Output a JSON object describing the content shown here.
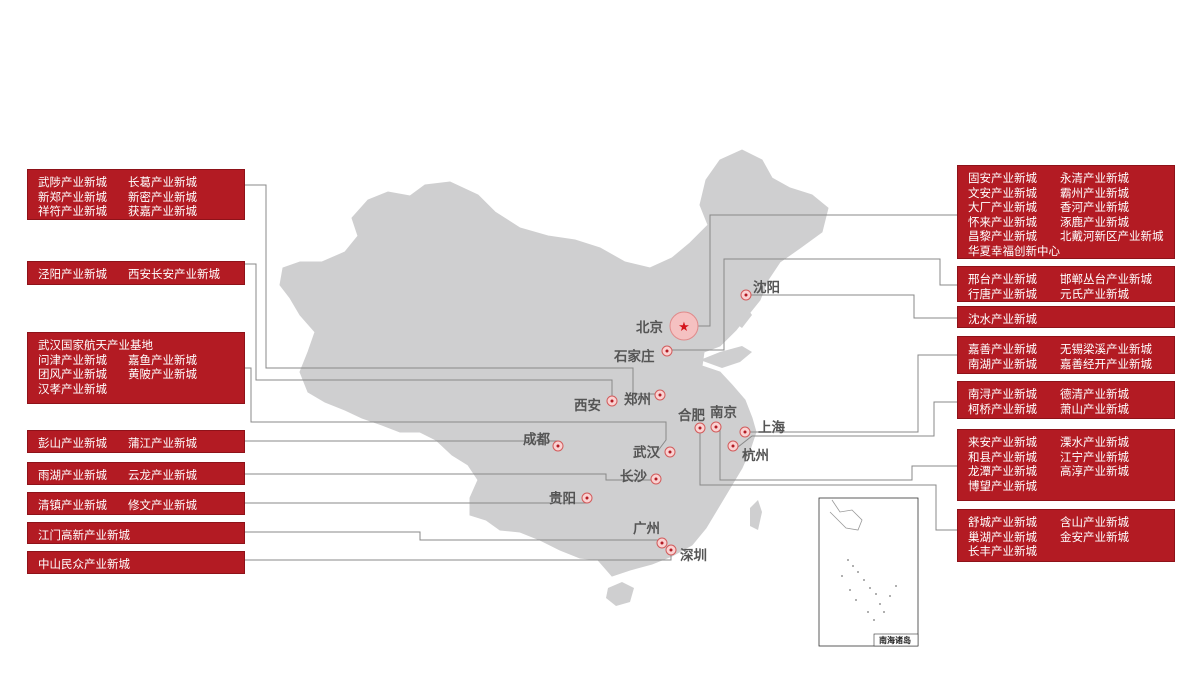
{
  "map": {
    "inset_label": "南海诸岛"
  },
  "cities": {
    "beijing": "北京",
    "shijiazhuang": "石家庄",
    "shenyang": "沈阳",
    "xian": "西安",
    "zhengzhou": "郑州",
    "hefei": "合肥",
    "nanjing": "南京",
    "shanghai": "上海",
    "hangzhou": "杭州",
    "chengdu": "成都",
    "wuhan": "武汉",
    "changsha": "长沙",
    "guiyang": "贵阳",
    "guangzhou": "广州",
    "shenzhen": "深圳"
  },
  "left_boxes": [
    {
      "rows": [
        [
          "武陟产业新城",
          "长葛产业新城"
        ],
        [
          "新郑产业新城",
          "新密产业新城"
        ],
        [
          "祥符产业新城",
          "获嘉产业新城"
        ]
      ]
    },
    {
      "rows": [
        [
          "泾阳产业新城",
          "西安长安产业新城"
        ]
      ]
    },
    {
      "rows": [
        [
          "武汉国家航天产业基地"
        ],
        [
          "问津产业新城",
          "嘉鱼产业新城"
        ],
        [
          "团风产业新城",
          "黄陂产业新城"
        ],
        [
          "汉孝产业新城"
        ]
      ]
    },
    {
      "rows": [
        [
          "彭山产业新城",
          "蒲江产业新城"
        ]
      ]
    },
    {
      "rows": [
        [
          "雨湖产业新城",
          "云龙产业新城"
        ]
      ]
    },
    {
      "rows": [
        [
          "清镇产业新城",
          "修文产业新城"
        ]
      ]
    },
    {
      "rows": [
        [
          "江门高新产业新城"
        ]
      ]
    },
    {
      "rows": [
        [
          "中山民众产业新城"
        ]
      ]
    }
  ],
  "right_boxes": [
    {
      "rows": [
        [
          "固安产业新城",
          "永清产业新城"
        ],
        [
          "文安产业新城",
          "霸州产业新城"
        ],
        [
          "大厂产业新城",
          "香河产业新城"
        ],
        [
          "怀来产业新城",
          "涿鹿产业新城"
        ],
        [
          "昌黎产业新城",
          "北戴河新区产业新城"
        ],
        [
          "华夏幸福创新中心"
        ]
      ]
    },
    {
      "rows": [
        [
          "邢台产业新城",
          "邯郸丛台产业新城"
        ],
        [
          "行唐产业新城",
          "元氏产业新城"
        ]
      ]
    },
    {
      "rows": [
        [
          "沈水产业新城"
        ]
      ]
    },
    {
      "rows": [
        [
          "嘉善产业新城",
          "无锡梁溪产业新城"
        ],
        [
          "南湖产业新城",
          "嘉善经开产业新城"
        ]
      ]
    },
    {
      "rows": [
        [
          "南浔产业新城",
          "德清产业新城"
        ],
        [
          "柯桥产业新城",
          "萧山产业新城"
        ]
      ]
    },
    {
      "rows": [
        [
          "来安产业新城",
          "溧水产业新城"
        ],
        [
          "和县产业新城",
          "江宁产业新城"
        ],
        [
          "龙潭产业新城",
          "高淳产业新城"
        ],
        [
          "博望产业新城"
        ]
      ]
    },
    {
      "rows": [
        [
          "舒城产业新城",
          "含山产业新城"
        ],
        [
          "巢湖产业新城",
          "金安产业新城"
        ],
        [
          "长丰产业新城"
        ]
      ]
    }
  ],
  "colors": {
    "box_red": "#b31b23",
    "map_gray": "#cfcfd0",
    "line_gray": "#888888",
    "dot_pink": "#f3b3b3",
    "star_red": "#d4141c"
  }
}
